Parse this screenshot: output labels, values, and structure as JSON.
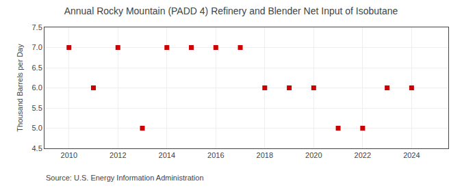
{
  "chart_data": {
    "type": "scatter",
    "title": "Annual Rocky Mountain (PADD 4) Refinery and Blender Net Input of Isobutane",
    "ylabel": "Thousand Barrels per Day",
    "annotations": [
      "Source: U.S. Energy Information Administration"
    ],
    "x": [
      2010,
      2011,
      2012,
      2013,
      2014,
      2015,
      2016,
      2017,
      2018,
      2019,
      2020,
      2021,
      2022,
      2023,
      2024
    ],
    "values": [
      7.0,
      6.0,
      7.0,
      5.0,
      7.0,
      7.0,
      7.0,
      7.0,
      6.0,
      6.0,
      6.0,
      5.0,
      5.0,
      6.0,
      6.0
    ],
    "color": "#cc0000",
    "marker": "square",
    "xlim": [
      2009.0,
      2025.5
    ],
    "xticks": [
      2010,
      2012,
      2014,
      2016,
      2018,
      2020,
      2022,
      2024
    ],
    "ylim": [
      4.5,
      7.5
    ],
    "yticks": [
      4.5,
      {
        "value": 5.0,
        "label": "5.0"
      },
      5.5,
      {
        "value": 6.0,
        "label": "6.0"
      },
      6.5,
      {
        "value": 7.0,
        "label": "7.0"
      },
      7.5
    ],
    "grid": true
  }
}
